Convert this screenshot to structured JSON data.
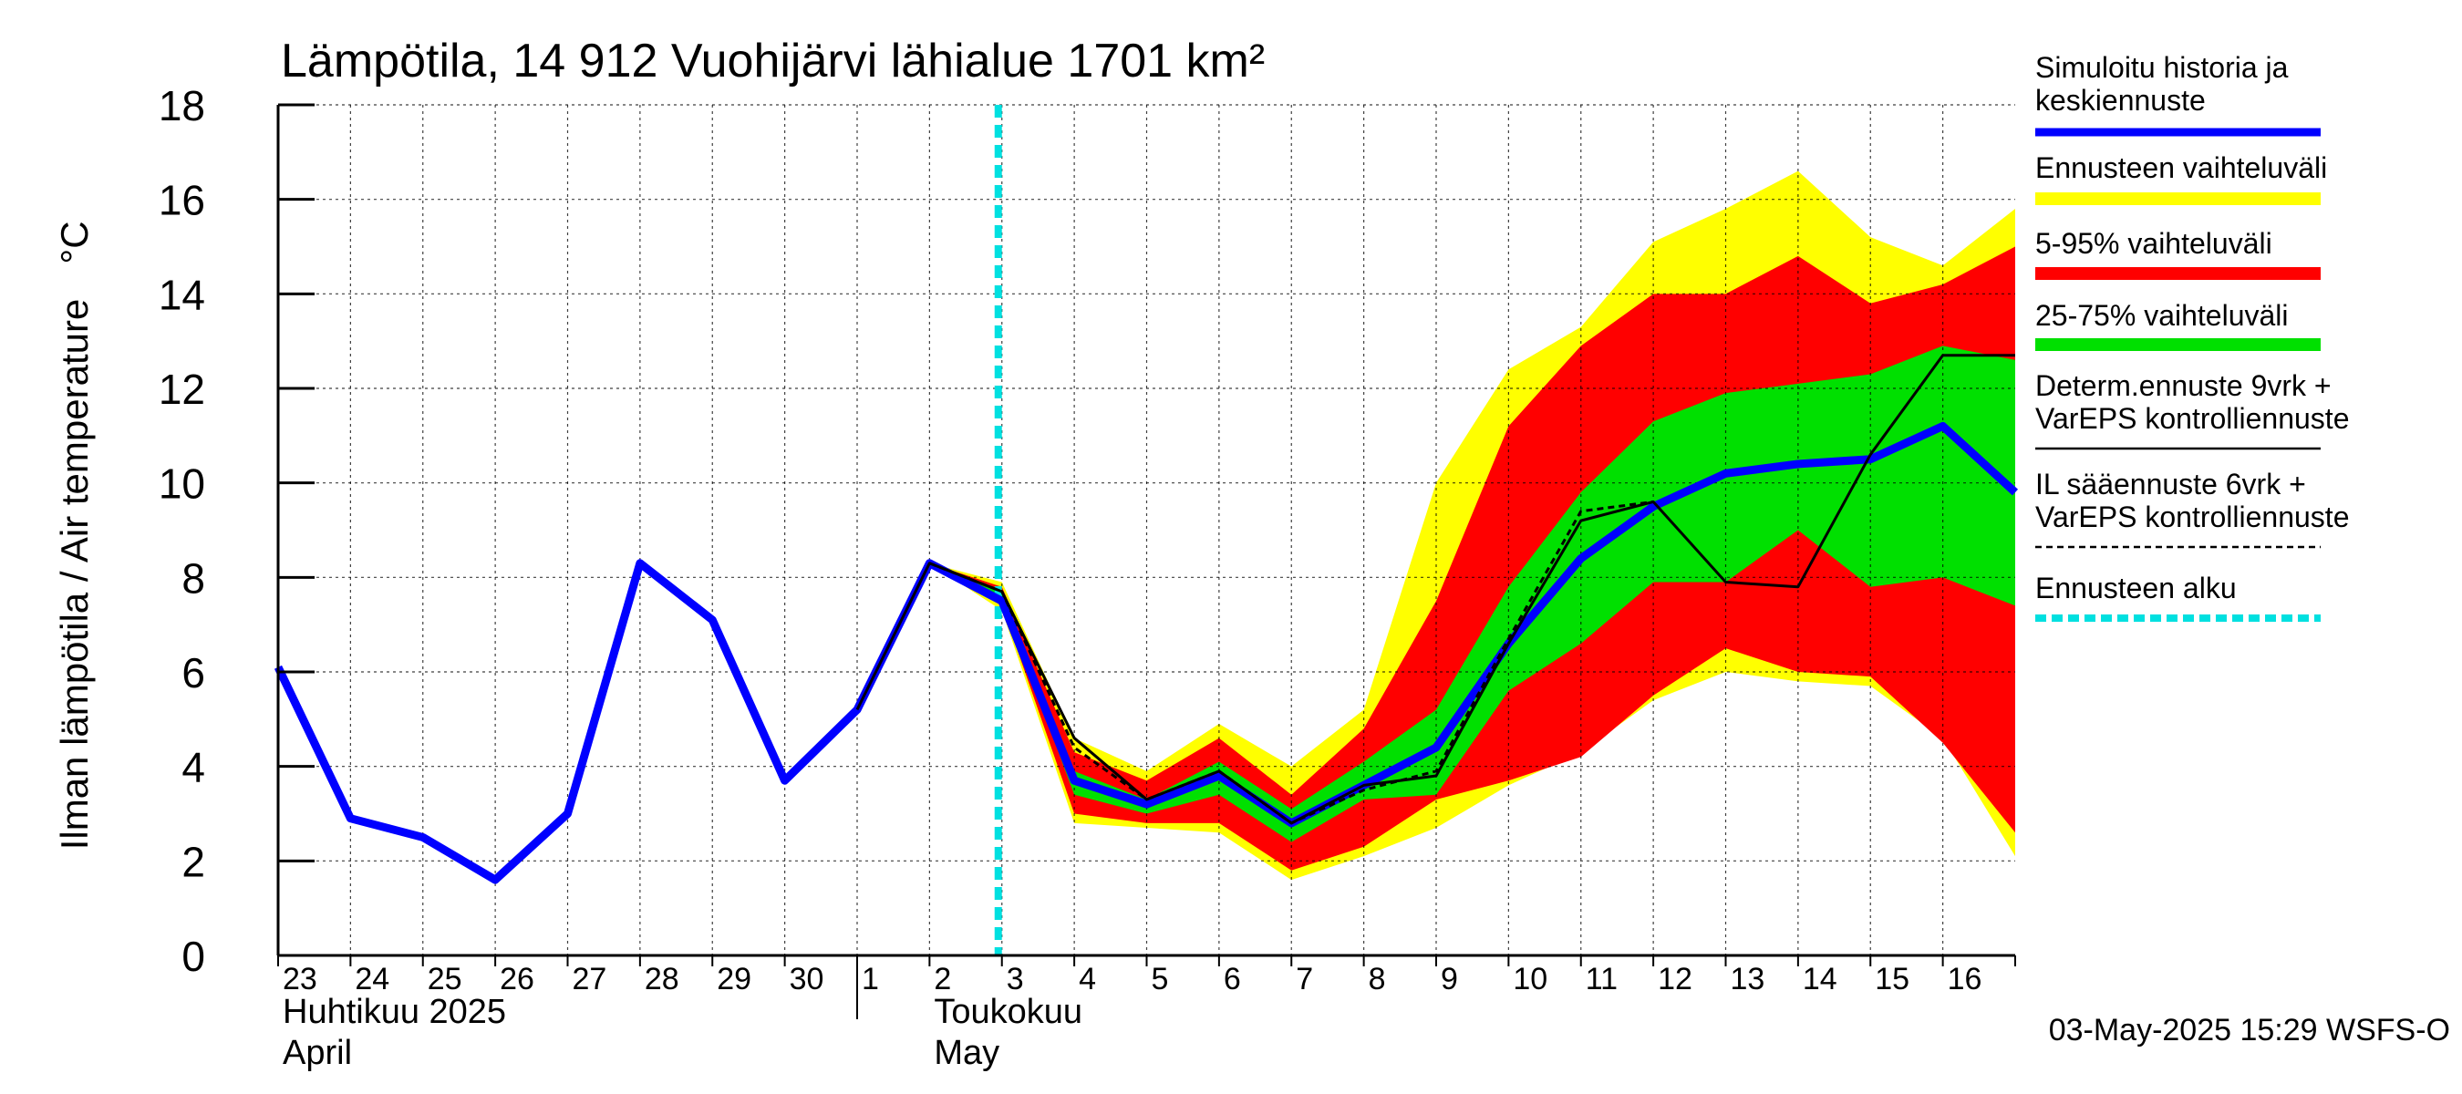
{
  "chart_data": {
    "type": "area",
    "title": "Lämpötila, 14 912 Vuohijärvi lähialue 1701 km²",
    "ylabel": "Ilman lämpötila / Air temperature",
    "yunit": "°C",
    "ylim": [
      0,
      18
    ],
    "yticks": [
      0,
      2,
      4,
      6,
      8,
      10,
      12,
      14,
      16,
      18
    ],
    "xlim": [
      "2025-04-23",
      "2025-05-17"
    ],
    "grid": true,
    "xtick_labels": [
      "23",
      "24",
      "25",
      "26",
      "27",
      "28",
      "29",
      "30",
      "1",
      "2",
      "3",
      "4",
      "5",
      "6",
      "7",
      "8",
      "9",
      "10",
      "11",
      "12",
      "13",
      "14",
      "15",
      "16"
    ],
    "month_labels": [
      {
        "fi": "Huhtikuu  2025",
        "en": "April",
        "date": "2025-04-23"
      },
      {
        "fi": "Toukokuu",
        "en": "May",
        "date": "2025-05-02"
      }
    ],
    "forecast_start": "2025-05-03",
    "footer": "03-May-2025 15:29 WSFS-O",
    "colors": {
      "simulated": "#0000ff",
      "range_full": "#ffff00",
      "range_5_95": "#ff0000",
      "range_25_75": "#00e000",
      "determ": "#000000",
      "il": "#000000",
      "forecast_start": "#00e0e0"
    },
    "legend": {
      "placement": "right",
      "items": [
        {
          "lines": [
            "Simuloitu historia ja",
            "keskiennuste"
          ],
          "key": "simulated",
          "style": "thick"
        },
        {
          "lines": [
            "Ennusteen vaihteluväli"
          ],
          "key": "range_full",
          "style": "band"
        },
        {
          "lines": [
            "5-95% vaihteluväli"
          ],
          "key": "range_5_95",
          "style": "band"
        },
        {
          "lines": [
            "25-75% vaihteluväli"
          ],
          "key": "range_25_75",
          "style": "band"
        },
        {
          "lines": [
            "Determ.ennuste 9vrk +",
            "VarEPS kontrolliennuste"
          ],
          "key": "determ",
          "style": "thin"
        },
        {
          "lines": [
            "IL sääennuste 6vrk  +",
            "  VarEPS kontrolliennuste"
          ],
          "key": "il",
          "style": "dashed"
        },
        {
          "lines": [
            "Ennusteen alku"
          ],
          "key": "forecast_start",
          "style": "dotted"
        }
      ]
    },
    "series": [
      {
        "key": "simulated",
        "x": [
          "2025-04-23",
          "2025-04-24",
          "2025-04-25",
          "2025-04-26",
          "2025-04-27",
          "2025-04-28",
          "2025-04-29",
          "2025-04-30",
          "2025-05-01",
          "2025-05-02",
          "2025-05-03",
          "2025-05-04",
          "2025-05-05",
          "2025-05-06",
          "2025-05-07",
          "2025-05-08",
          "2025-05-09",
          "2025-05-10",
          "2025-05-11",
          "2025-05-12",
          "2025-05-13",
          "2025-05-14",
          "2025-05-15",
          "2025-05-16",
          "2025-05-17"
        ],
        "y": [
          6.1,
          2.9,
          2.5,
          1.6,
          3.0,
          8.3,
          7.1,
          3.7,
          5.2,
          8.3,
          7.5,
          3.7,
          3.2,
          3.8,
          2.8,
          3.6,
          4.4,
          6.6,
          8.4,
          9.5,
          10.2,
          10.4,
          10.5,
          11.2,
          9.8
        ]
      },
      {
        "key": "determ",
        "x": [
          "2025-05-01",
          "2025-05-02",
          "2025-05-03",
          "2025-05-04",
          "2025-05-05",
          "2025-05-06",
          "2025-05-07",
          "2025-05-08",
          "2025-05-09",
          "2025-05-10",
          "2025-05-11",
          "2025-05-12",
          "2025-05-13",
          "2025-05-14",
          "2025-05-15",
          "2025-05-16",
          "2025-05-17"
        ],
        "y": [
          5.2,
          8.3,
          7.7,
          4.6,
          3.3,
          3.9,
          2.8,
          3.6,
          3.8,
          6.6,
          9.2,
          9.6,
          7.9,
          7.8,
          10.6,
          12.7,
          12.7
        ]
      },
      {
        "key": "il",
        "x": [
          "2025-05-02",
          "2025-05-03",
          "2025-05-04",
          "2025-05-05",
          "2025-05-06",
          "2025-05-07",
          "2025-05-08",
          "2025-05-09",
          "2025-05-10",
          "2025-05-11",
          "2025-05-12"
        ],
        "y": [
          8.3,
          7.7,
          4.4,
          3.3,
          3.9,
          2.8,
          3.5,
          3.9,
          6.7,
          9.4,
          9.6
        ]
      }
    ],
    "bands": {
      "x": [
        "2025-05-02",
        "2025-05-03",
        "2025-05-04",
        "2025-05-05",
        "2025-05-06",
        "2025-05-07",
        "2025-05-08",
        "2025-05-09",
        "2025-05-10",
        "2025-05-11",
        "2025-05-12",
        "2025-05-13",
        "2025-05-14",
        "2025-05-15",
        "2025-05-16",
        "2025-05-17"
      ],
      "range_full": {
        "low": [
          8.3,
          7.3,
          2.8,
          2.7,
          2.6,
          1.6,
          2.1,
          2.7,
          3.6,
          4.3,
          5.4,
          6.0,
          5.8,
          5.7,
          4.6,
          2.1
        ],
        "high": [
          8.3,
          7.9,
          4.6,
          3.9,
          4.9,
          4.0,
          5.2,
          10.0,
          12.4,
          13.3,
          15.1,
          15.8,
          16.6,
          15.2,
          14.6,
          15.8
        ]
      },
      "range_5_95": {
        "low": [
          8.3,
          7.4,
          3.0,
          2.8,
          2.8,
          1.8,
          2.3,
          3.3,
          3.7,
          4.2,
          5.5,
          6.5,
          6.0,
          5.9,
          4.5,
          2.6
        ],
        "high": [
          8.3,
          7.8,
          4.3,
          3.7,
          4.6,
          3.4,
          4.8,
          7.5,
          11.2,
          12.9,
          14.0,
          14.0,
          14.8,
          13.8,
          14.2,
          15.0
        ]
      },
      "range_25_75": {
        "low": [
          8.3,
          7.5,
          3.4,
          3.0,
          3.4,
          2.4,
          3.3,
          3.4,
          5.6,
          6.6,
          7.9,
          7.9,
          9.0,
          7.8,
          8.0,
          7.4
        ],
        "high": [
          8.3,
          7.7,
          3.9,
          3.3,
          4.1,
          3.1,
          4.1,
          5.2,
          7.8,
          9.8,
          11.3,
          11.9,
          12.1,
          12.3,
          12.9,
          12.6
        ]
      }
    }
  }
}
